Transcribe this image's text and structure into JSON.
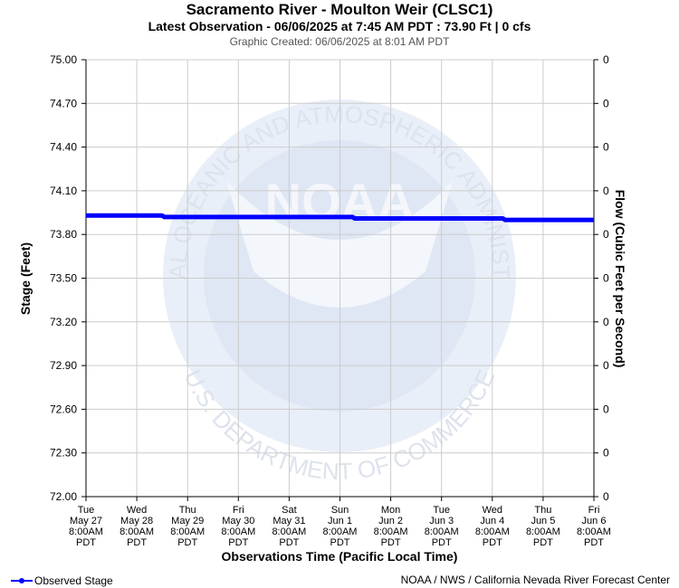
{
  "header": {
    "title": "Sacramento River - Moulton Weir (CLSC1)",
    "latest": "Latest Observation - 06/06/2025 at 7:45 AM PDT : 73.90 Ft | 0 cfs",
    "created": "Graphic Created: 06/06/2025 at 8:01 AM PDT"
  },
  "footer": {
    "legend_label": "Observed Stage",
    "credit": "NOAA / NWS / California Nevada River Forecast Center"
  },
  "watermark": {
    "agency_text": "NATIONAL OCEANIC AND ATMOSPHERIC ADMINISTRATION",
    "dept_text": "U.S. DEPARTMENT OF COMMERCE",
    "logo_text": "NOAA"
  },
  "colors": {
    "series": "#0000ff",
    "grid": "#cccccc",
    "watermark": "#e6ecf6"
  },
  "chart_data": {
    "type": "line",
    "xlabel": "Observations Time (Pacific Local Time)",
    "ylabel": "Stage (Feet)",
    "y2label": "Flow (Cubic Feet per Second)",
    "ylim": [
      72.0,
      75.0
    ],
    "yticks": [
      "75.00",
      "74.70",
      "74.40",
      "74.10",
      "73.80",
      "73.50",
      "73.20",
      "72.90",
      "72.60",
      "72.30",
      "72.00"
    ],
    "y2ticks": [
      "0",
      "0",
      "0",
      "0",
      "0",
      "0",
      "0",
      "0",
      "0",
      "0",
      "0"
    ],
    "xlim": [
      "2025-05-27 08:00",
      "2025-06-06 08:00"
    ],
    "xticks": [
      [
        "Tue",
        "May 27",
        "8:00AM",
        "PDT"
      ],
      [
        "Wed",
        "May 28",
        "8:00AM",
        "PDT"
      ],
      [
        "Thu",
        "May 29",
        "8:00AM",
        "PDT"
      ],
      [
        "Fri",
        "May 30",
        "8:00AM",
        "PDT"
      ],
      [
        "Sat",
        "May 31",
        "8:00AM",
        "PDT"
      ],
      [
        "Sun",
        "Jun 1",
        "8:00AM",
        "PDT"
      ],
      [
        "Mon",
        "Jun 2",
        "8:00AM",
        "PDT"
      ],
      [
        "Tue",
        "Jun 3",
        "8:00AM",
        "PDT"
      ],
      [
        "Wed",
        "Jun 4",
        "8:00AM",
        "PDT"
      ],
      [
        "Thu",
        "Jun 5",
        "8:00AM",
        "PDT"
      ],
      [
        "Fri",
        "Jun 6",
        "8:00AM",
        "PDT"
      ]
    ],
    "grid": true,
    "legend": "bottom-left",
    "series": [
      {
        "name": "Observed Stage",
        "x": [
          "2025-05-27 08:00",
          "2025-05-28 20:00",
          "2025-05-28 21:00",
          "2025-05-30 08:00",
          "2025-05-30 09:00",
          "2025-06-01 14:00",
          "2025-06-01 15:00",
          "2025-06-04 13:00",
          "2025-06-04 14:00",
          "2025-06-05 07:45",
          "2025-06-06 07:45"
        ],
        "y": [
          73.93,
          73.93,
          73.92,
          73.92,
          73.92,
          73.92,
          73.91,
          73.91,
          73.9,
          73.9,
          73.9
        ]
      }
    ]
  }
}
